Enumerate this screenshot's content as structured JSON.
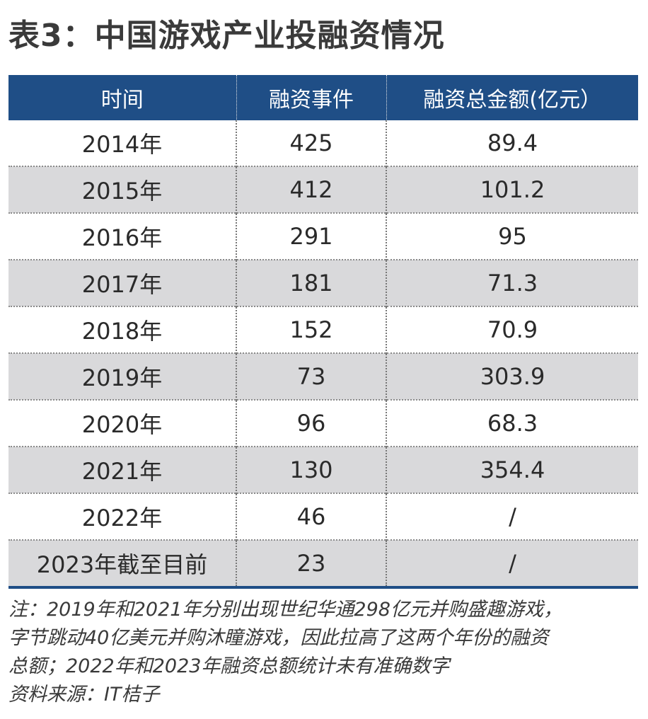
{
  "title": "表3：中国游戏产业投融资情况",
  "table": {
    "headers": [
      "时间",
      "融资事件",
      "融资总金额(亿元）"
    ],
    "rows": [
      [
        "2014年",
        "425",
        "89.4"
      ],
      [
        "2015年",
        "412",
        "101.2"
      ],
      [
        "2016年",
        "291",
        "95"
      ],
      [
        "2017年",
        "181",
        "71.3"
      ],
      [
        "2018年",
        "152",
        "70.9"
      ],
      [
        "2019年",
        "73",
        "303.9"
      ],
      [
        "2020年",
        "96",
        "68.3"
      ],
      [
        "2021年",
        "130",
        "354.4"
      ],
      [
        "2022年",
        "46",
        "/"
      ],
      [
        "2023年截至目前",
        "23",
        "/"
      ]
    ]
  },
  "notes": {
    "line1": "注：2019年和2021年分别出现世纪华通298亿元并购盛趣游戏，",
    "line2": "字节跳动40亿美元并购沐瞳游戏，因此拉高了这两个年份的融资",
    "line3": "总额；2022年和2023年融资总额统计未有准确数字",
    "source": "资料来源：IT桔子"
  },
  "colors": {
    "header_bg": "#1f4e86",
    "shade_row": "#d9d9db"
  }
}
